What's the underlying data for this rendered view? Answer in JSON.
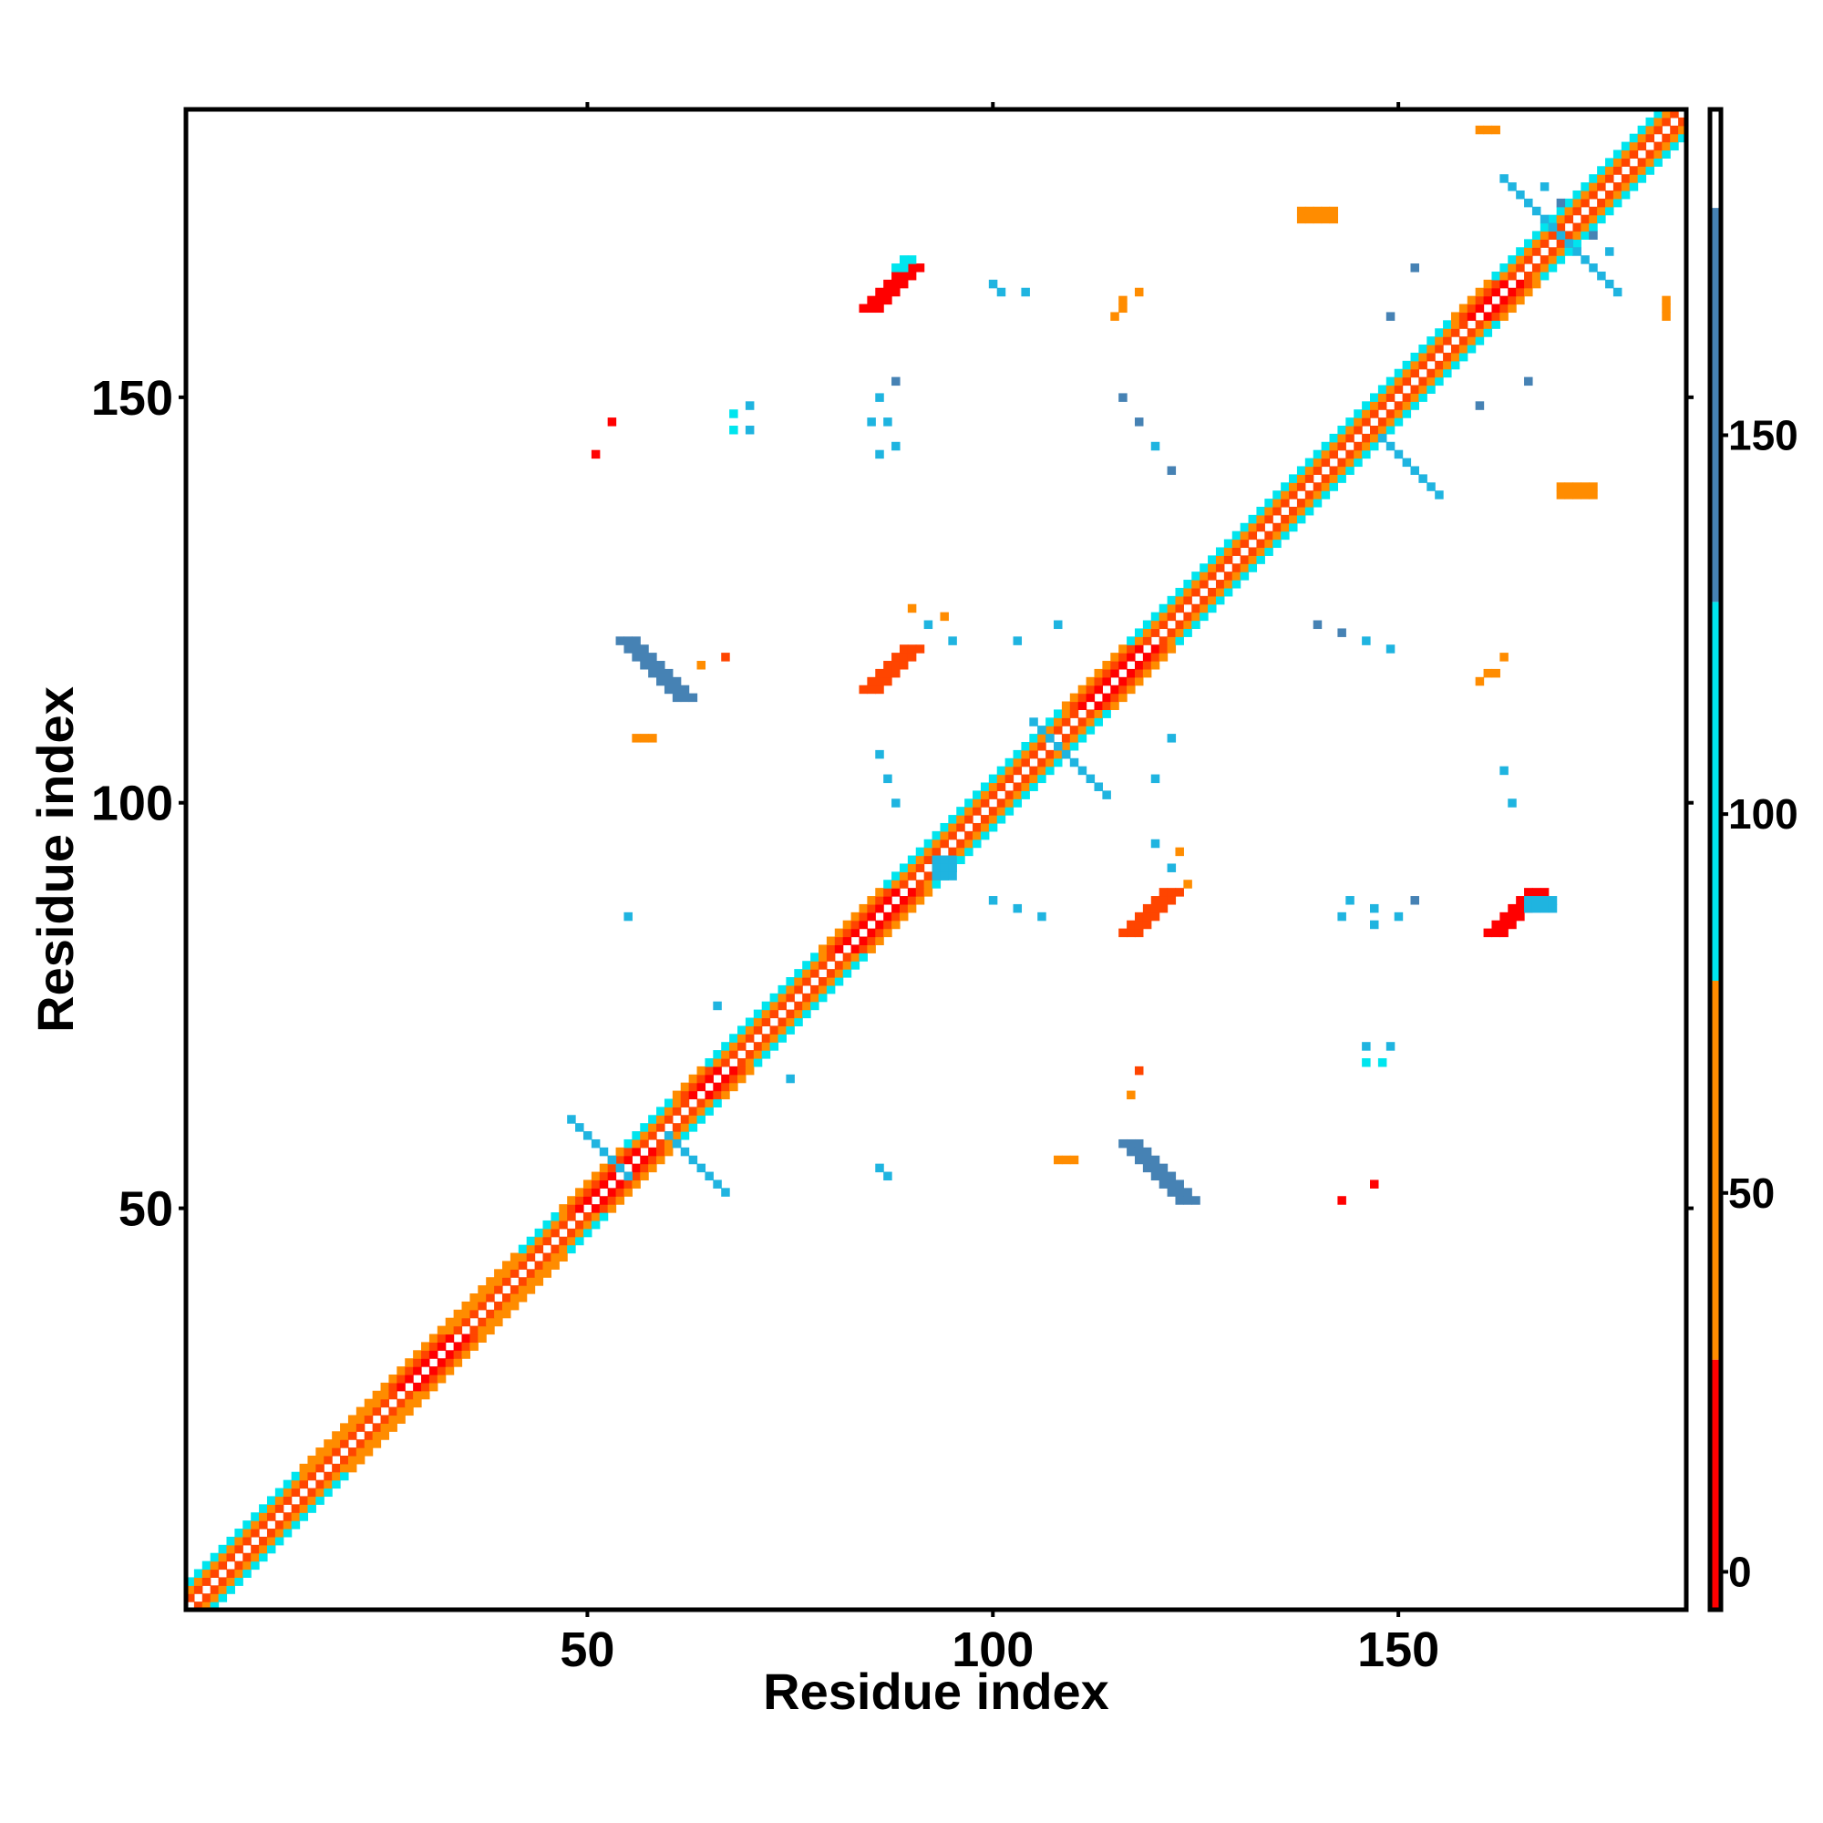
{
  "chart_data": {
    "type": "heatmap",
    "title": "",
    "xlabel": "Residue index",
    "ylabel": "Residue index",
    "xlim": [
      1,
      185
    ],
    "ylim": [
      1,
      185
    ],
    "x_ticks": [
      50,
      100,
      150
    ],
    "y_ticks": [
      50,
      100,
      150
    ],
    "colorbar": {
      "ticks": [
        0,
        50,
        100,
        150
      ],
      "range": [
        -5,
        193
      ],
      "bands": [
        {
          "from": -5,
          "to": 28,
          "color": "#ff0000"
        },
        {
          "from": 28,
          "to": 78,
          "color": "#ff8c00"
        },
        {
          "from": 78,
          "to": 128,
          "color": "#00e5ee"
        },
        {
          "from": 128,
          "to": 180,
          "color": "#4682b4"
        },
        {
          "from": 180,
          "to": 193,
          "color": "#ffffff"
        }
      ]
    },
    "colors": {
      "red": "#ff0000",
      "orange_red": "#ff4500",
      "orange": "#ff8c00",
      "cyan": "#00e5ee",
      "sky": "#1fb4e0",
      "steel": "#4682b4"
    },
    "diagonal": {
      "from": 1,
      "to": 185,
      "width": 3
    },
    "diagonal_segments": [
      {
        "from": 1,
        "to": 18,
        "pattern": "mixed"
      },
      {
        "from": 18,
        "to": 28,
        "pattern": "orange"
      },
      {
        "from": 28,
        "to": 35,
        "pattern": "red"
      },
      {
        "from": 35,
        "to": 45,
        "pattern": "orange"
      },
      {
        "from": 45,
        "to": 50,
        "pattern": "mixed"
      },
      {
        "from": 50,
        "to": 58,
        "pattern": "red"
      },
      {
        "from": 58,
        "to": 64,
        "pattern": "mixed"
      },
      {
        "from": 64,
        "to": 68,
        "pattern": "red"
      },
      {
        "from": 68,
        "to": 82,
        "pattern": "mixed"
      },
      {
        "from": 82,
        "to": 90,
        "pattern": "red"
      },
      {
        "from": 90,
        "to": 112,
        "pattern": "mixed"
      },
      {
        "from": 112,
        "to": 120,
        "pattern": "red"
      },
      {
        "from": 120,
        "to": 132,
        "pattern": "mixed"
      },
      {
        "from": 132,
        "to": 160,
        "pattern": "mixed"
      },
      {
        "from": 160,
        "to": 165,
        "pattern": "red"
      },
      {
        "from": 165,
        "to": 185,
        "pattern": "mixed"
      }
    ],
    "contact_blocks": [
      {
        "x": 54,
        "y": 120,
        "dx": 1,
        "dy": -1,
        "len": 8,
        "w": 3,
        "color": "#4682b4"
      },
      {
        "x": 116,
        "y": 58,
        "dx": 1,
        "dy": -1,
        "len": 8,
        "w": 3,
        "color": "#4682b4"
      },
      {
        "x": 84,
        "y": 161,
        "dx": 1,
        "dy": 1,
        "len": 6,
        "w": 3,
        "color": "#ff0000"
      },
      {
        "x": 88,
        "y": 166,
        "dx": 1,
        "dy": 1,
        "len": 2,
        "w": 2,
        "color": "#00e5ee"
      },
      {
        "x": 84,
        "y": 114,
        "dx": 1,
        "dy": 1,
        "len": 6,
        "w": 3,
        "color": "#ff4500"
      },
      {
        "x": 116,
        "y": 84,
        "dx": 1,
        "dy": 1,
        "len": 6,
        "w": 3,
        "color": "#ff4500"
      },
      {
        "x": 161,
        "y": 84,
        "dx": 1,
        "dy": 1,
        "len": 6,
        "w": 3,
        "color": "#ff0000"
      },
      {
        "x": 166,
        "y": 88,
        "dx": 1,
        "dy": 0,
        "len": 4,
        "w": 2,
        "color": "#1fb4e0"
      },
      {
        "x": 55,
        "y": 54,
        "dx": -1,
        "dy": 1,
        "len": 8,
        "w": 1,
        "color": "#1fb4e0"
      },
      {
        "x": 60,
        "y": 59,
        "dx": 1,
        "dy": -1,
        "len": 8,
        "w": 1,
        "color": "#1fb4e0"
      },
      {
        "x": 105,
        "y": 110,
        "dx": 1,
        "dy": -1,
        "len": 10,
        "w": 1,
        "color": "#1fb4e0"
      },
      {
        "x": 170,
        "y": 170,
        "dx": -1,
        "dy": 1,
        "len": 8,
        "w": 1,
        "color": "#1fb4e0"
      },
      {
        "x": 170,
        "y": 170,
        "dx": 1,
        "dy": -1,
        "len": 8,
        "w": 1,
        "color": "#1fb4e0"
      },
      {
        "x": 148,
        "y": 145,
        "dx": 1,
        "dy": -1,
        "len": 8,
        "w": 1,
        "color": "#1fb4e0"
      },
      {
        "x": 138,
        "y": 173,
        "dx": 1,
        "dy": 0,
        "len": 5,
        "w": 2,
        "color": "#ff8c00"
      },
      {
        "x": 170,
        "y": 139,
        "dx": 1,
        "dy": 0,
        "len": 5,
        "w": 2,
        "color": "#ff8c00"
      },
      {
        "x": 160,
        "y": 183,
        "dx": 1,
        "dy": 0,
        "len": 3,
        "w": 1,
        "color": "#ff8c00"
      },
      {
        "x": 183,
        "y": 160,
        "dx": 0,
        "dy": 1,
        "len": 3,
        "w": 1,
        "color": "#ff8c00"
      },
      {
        "x": 115,
        "y": 160,
        "dx": 1,
        "dy": 1,
        "len": 2,
        "w": 1,
        "color": "#ff8c00"
      },
      {
        "x": 160,
        "y": 115,
        "dx": 1,
        "dy": 1,
        "len": 2,
        "w": 1,
        "color": "#ff8c00"
      },
      {
        "x": 56,
        "y": 108,
        "dx": 1,
        "dy": 0,
        "len": 3,
        "w": 1,
        "color": "#ff8c00"
      },
      {
        "x": 108,
        "y": 56,
        "dx": 1,
        "dy": 0,
        "len": 3,
        "w": 1,
        "color": "#ff8c00"
      },
      {
        "x": 93,
        "y": 93,
        "dx": 1,
        "dy": 0,
        "len": 3,
        "w": 3,
        "color": "#1fb4e0"
      }
    ],
    "contact_dots": [
      {
        "x": 53,
        "y": 147,
        "color": "#ff0000"
      },
      {
        "x": 51,
        "y": 143,
        "color": "#ff0000"
      },
      {
        "x": 147,
        "y": 53,
        "color": "#ff0000"
      },
      {
        "x": 143,
        "y": 51,
        "color": "#ff0000"
      },
      {
        "x": 68,
        "y": 148,
        "color": "#00e5ee"
      },
      {
        "x": 68,
        "y": 146,
        "color": "#00e5ee"
      },
      {
        "x": 148,
        "y": 68,
        "color": "#00e5ee"
      },
      {
        "x": 146,
        "y": 68,
        "color": "#00e5ee"
      },
      {
        "x": 86,
        "y": 150,
        "color": "#1fb4e0"
      },
      {
        "x": 87,
        "y": 147,
        "color": "#1fb4e0"
      },
      {
        "x": 88,
        "y": 144,
        "color": "#1fb4e0"
      },
      {
        "x": 150,
        "y": 86,
        "color": "#1fb4e0"
      },
      {
        "x": 147,
        "y": 87,
        "color": "#1fb4e0"
      },
      {
        "x": 144,
        "y": 88,
        "color": "#1fb4e0"
      },
      {
        "x": 116,
        "y": 150,
        "color": "#4682b4"
      },
      {
        "x": 118,
        "y": 147,
        "color": "#4682b4"
      },
      {
        "x": 120,
        "y": 144,
        "color": "#1fb4e0"
      },
      {
        "x": 122,
        "y": 141,
        "color": "#4682b4"
      },
      {
        "x": 140,
        "y": 122,
        "color": "#4682b4"
      },
      {
        "x": 143,
        "y": 121,
        "color": "#4682b4"
      },
      {
        "x": 146,
        "y": 120,
        "color": "#1fb4e0"
      },
      {
        "x": 149,
        "y": 119,
        "color": "#1fb4e0"
      },
      {
        "x": 100,
        "y": 164,
        "color": "#1fb4e0"
      },
      {
        "x": 104,
        "y": 163,
        "color": "#1fb4e0"
      },
      {
        "x": 164,
        "y": 100,
        "color": "#1fb4e0"
      },
      {
        "x": 163,
        "y": 104,
        "color": "#1fb4e0"
      },
      {
        "x": 116,
        "y": 162,
        "color": "#ff8c00"
      },
      {
        "x": 118,
        "y": 163,
        "color": "#ff8c00"
      },
      {
        "x": 162,
        "y": 116,
        "color": "#ff8c00"
      },
      {
        "x": 163,
        "y": 118,
        "color": "#ff8c00"
      },
      {
        "x": 64,
        "y": 117,
        "color": "#ff8c00"
      },
      {
        "x": 117,
        "y": 64,
        "color": "#ff8c00"
      },
      {
        "x": 55,
        "y": 86,
        "color": "#1fb4e0"
      },
      {
        "x": 86,
        "y": 55,
        "color": "#1fb4e0"
      },
      {
        "x": 66,
        "y": 75,
        "color": "#1fb4e0"
      },
      {
        "x": 75,
        "y": 66,
        "color": "#1fb4e0"
      },
      {
        "x": 87,
        "y": 54,
        "color": "#1fb4e0"
      },
      {
        "x": 90,
        "y": 124,
        "color": "#ff8c00"
      },
      {
        "x": 92,
        "y": 122,
        "color": "#1fb4e0"
      },
      {
        "x": 124,
        "y": 90,
        "color": "#ff8c00"
      },
      {
        "x": 122,
        "y": 92,
        "color": "#1fb4e0"
      },
      {
        "x": 100,
        "y": 88,
        "color": "#1fb4e0"
      },
      {
        "x": 103,
        "y": 87,
        "color": "#1fb4e0"
      },
      {
        "x": 106,
        "y": 86,
        "color": "#1fb4e0"
      },
      {
        "x": 88,
        "y": 100,
        "color": "#1fb4e0"
      },
      {
        "x": 87,
        "y": 103,
        "color": "#1fb4e0"
      },
      {
        "x": 86,
        "y": 106,
        "color": "#1fb4e0"
      },
      {
        "x": 120,
        "y": 95,
        "color": "#1fb4e0"
      },
      {
        "x": 123,
        "y": 94,
        "color": "#ff8c00"
      },
      {
        "x": 95,
        "y": 120,
        "color": "#1fb4e0"
      },
      {
        "x": 94,
        "y": 123,
        "color": "#ff8c00"
      },
      {
        "x": 118,
        "y": 67,
        "color": "#ff4500"
      },
      {
        "x": 67,
        "y": 118,
        "color": "#ff4500"
      },
      {
        "x": 146,
        "y": 70,
        "color": "#1fb4e0"
      },
      {
        "x": 149,
        "y": 70,
        "color": "#1fb4e0"
      },
      {
        "x": 70,
        "y": 146,
        "color": "#1fb4e0"
      },
      {
        "x": 70,
        "y": 149,
        "color": "#1fb4e0"
      },
      {
        "x": 143,
        "y": 86,
        "color": "#1fb4e0"
      },
      {
        "x": 147,
        "y": 85,
        "color": "#1fb4e0"
      },
      {
        "x": 86,
        "y": 143,
        "color": "#1fb4e0"
      },
      {
        "x": 85,
        "y": 147,
        "color": "#1fb4e0"
      },
      {
        "x": 108,
        "y": 122,
        "color": "#1fb4e0"
      },
      {
        "x": 103,
        "y": 120,
        "color": "#1fb4e0"
      },
      {
        "x": 122,
        "y": 108,
        "color": "#1fb4e0"
      },
      {
        "x": 120,
        "y": 103,
        "color": "#1fb4e0"
      },
      {
        "x": 174,
        "y": 170,
        "color": "#4682b4"
      },
      {
        "x": 176,
        "y": 168,
        "color": "#1fb4e0"
      },
      {
        "x": 170,
        "y": 174,
        "color": "#4682b4"
      },
      {
        "x": 168,
        "y": 176,
        "color": "#1fb4e0"
      },
      {
        "x": 101,
        "y": 163,
        "color": "#1fb4e0"
      },
      {
        "x": 88,
        "y": 152,
        "color": "#4682b4"
      },
      {
        "x": 152,
        "y": 88,
        "color": "#4682b4"
      },
      {
        "x": 166,
        "y": 152,
        "color": "#4682b4"
      },
      {
        "x": 152,
        "y": 166,
        "color": "#4682b4"
      },
      {
        "x": 160,
        "y": 149,
        "color": "#4682b4"
      },
      {
        "x": 149,
        "y": 160,
        "color": "#4682b4"
      }
    ]
  }
}
